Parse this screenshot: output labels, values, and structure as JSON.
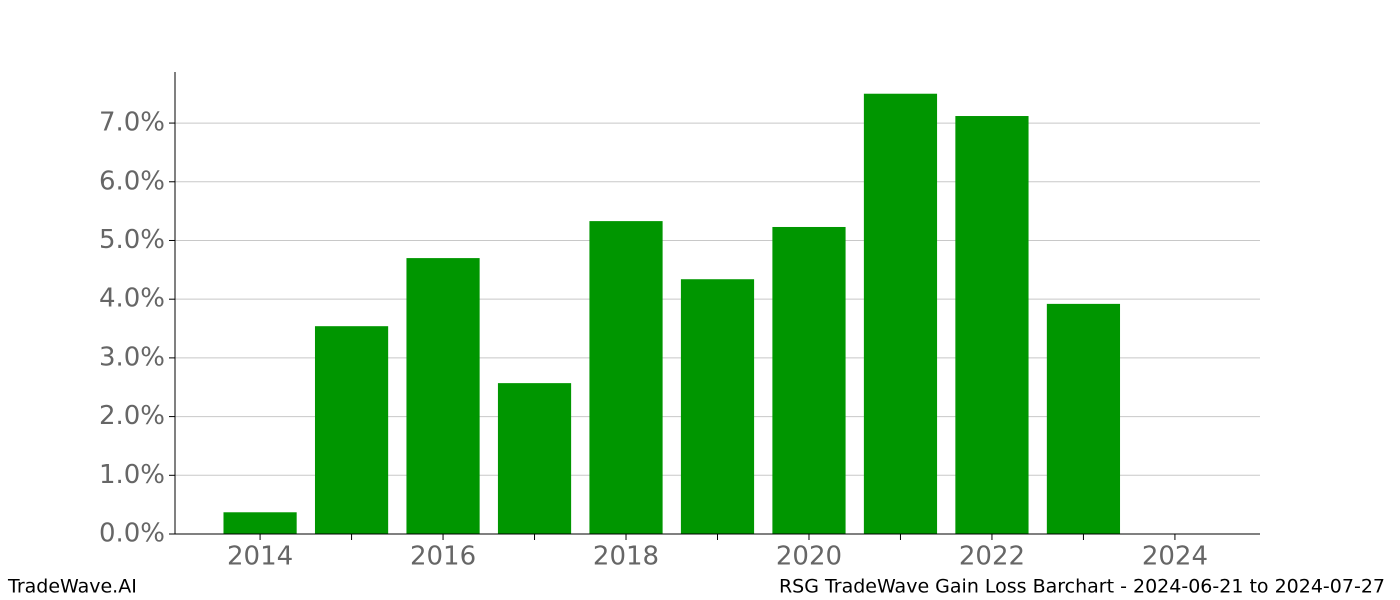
{
  "chart_data": {
    "type": "bar",
    "title": "RSG TradeWave Gain Loss Barchart - 2024-06-21 to 2024-07-27",
    "watermark": "TradeWave.AI",
    "x": [
      2014,
      2015,
      2016,
      2017,
      2018,
      2019,
      2020,
      2021,
      2022,
      2023
    ],
    "values": [
      0.37,
      3.54,
      4.7,
      2.57,
      5.33,
      4.34,
      5.23,
      7.5,
      7.12,
      3.92
    ],
    "color": "#009600",
    "xlim": [
      2013.07,
      2024.93
    ],
    "xticks": [
      2014,
      2016,
      2018,
      2020,
      2022,
      2024
    ],
    "xminorticks": [
      2015,
      2017,
      2019,
      2021,
      2023
    ],
    "ylim": [
      0,
      7.87
    ],
    "yticks": [
      {
        "value": 0,
        "label": "0.0%"
      },
      {
        "value": 1,
        "label": "1.0%"
      },
      {
        "value": 2,
        "label": "2.0%"
      },
      {
        "value": 3,
        "label": "3.0%"
      },
      {
        "value": 4,
        "label": "4.0%"
      },
      {
        "value": 5,
        "label": "5.0%"
      },
      {
        "value": 6,
        "label": "6.0%"
      },
      {
        "value": 7,
        "label": "7.0%"
      }
    ],
    "grid": true
  }
}
